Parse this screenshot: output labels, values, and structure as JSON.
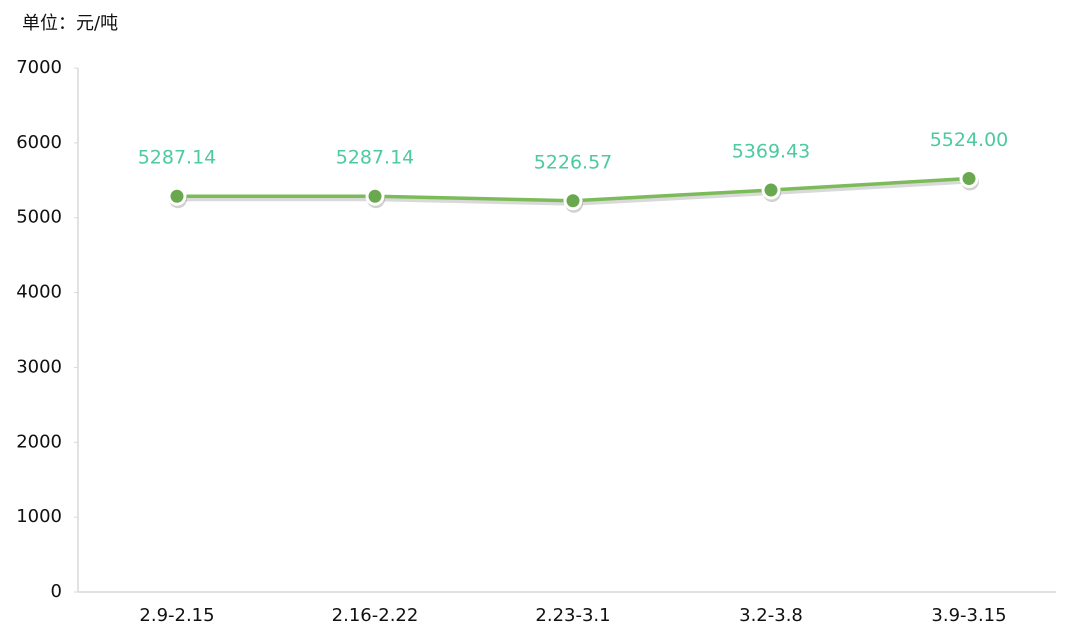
{
  "chart_data": {
    "type": "line",
    "y_label": "单位：元/吨",
    "categories": [
      "2.9-2.15",
      "2.16-2.22",
      "2.23-3.1",
      "3.2-3.8",
      "3.9-3.15"
    ],
    "values": [
      5287.14,
      5287.14,
      5226.57,
      5369.43,
      5524.0
    ],
    "value_labels": [
      "5287.14",
      "5287.14",
      "5226.57",
      "5369.43",
      "5524.00"
    ],
    "color": "#7cbb5a",
    "marker_color": "#6aa84f",
    "ylim": [
      0,
      7000
    ],
    "yticks": [
      0,
      1000,
      2000,
      3000,
      4000,
      5000,
      6000,
      7000
    ],
    "grid": false
  }
}
